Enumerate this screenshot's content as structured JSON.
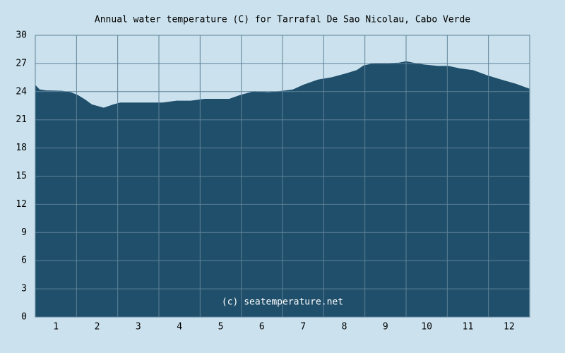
{
  "chart_data": {
    "type": "area",
    "title": "Annual water temperature (C) for Tarrafal De Sao Nicolau, Cabo Verde",
    "annotation": "(c) seatemperature.net",
    "x": [
      0.5,
      0.6,
      0.76,
      1.15,
      1.36,
      1.53,
      1.7,
      1.87,
      2.04,
      2.16,
      2.39,
      2.56,
      2.9,
      3.24,
      3.59,
      3.93,
      4.27,
      4.61,
      4.96,
      5.21,
      5.47,
      5.81,
      6.16,
      6.5,
      6.76,
      7.01,
      7.36,
      7.7,
      8.04,
      8.3,
      8.47,
      8.73,
      9.07,
      9.33,
      9.5,
      9.67,
      9.93,
      10.27,
      10.53,
      10.79,
      11.13,
      11.47,
      11.81,
      12.16,
      12.48
    ],
    "values": [
      24.66,
      24.2,
      24.1,
      24.05,
      23.9,
      23.6,
      23.15,
      22.6,
      22.4,
      22.25,
      22.6,
      22.8,
      22.8,
      22.8,
      22.8,
      23.0,
      23.0,
      23.2,
      23.2,
      23.2,
      23.6,
      24.0,
      23.9,
      24.05,
      24.2,
      24.7,
      25.25,
      25.5,
      25.9,
      26.25,
      26.75,
      27.0,
      27.0,
      27.05,
      27.2,
      27.05,
      26.85,
      26.7,
      26.7,
      26.45,
      26.25,
      25.7,
      25.25,
      24.8,
      24.3
    ],
    "color": "#1f4f6b",
    "xlim": [
      0.5,
      12.5
    ],
    "xticks": [
      1,
      2,
      3,
      4,
      5,
      6,
      7,
      8,
      9,
      10,
      11,
      12
    ],
    "ylim": [
      0,
      30
    ],
    "yticks": [
      0,
      3,
      6,
      9,
      12,
      15,
      18,
      21,
      24,
      27,
      30
    ],
    "grid": true
  }
}
